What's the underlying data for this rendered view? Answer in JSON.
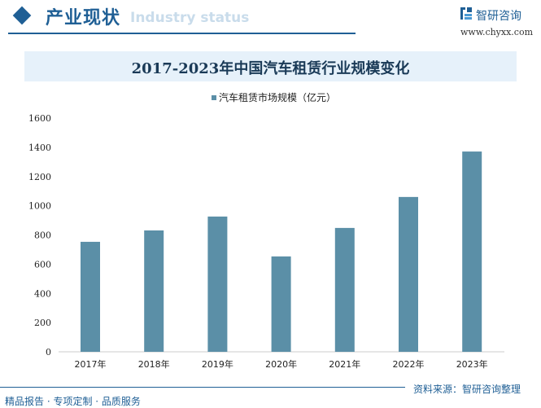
{
  "header": {
    "section_title": "产业现状",
    "section_subtitle": "Industry status",
    "brand_name": "智研咨询",
    "brand_url": "www.chyxx.com"
  },
  "chart_data": {
    "type": "bar",
    "title": "2017-2023年中国汽车租赁行业规模变化",
    "categories": [
      "2017年",
      "2018年",
      "2019年",
      "2020年",
      "2021年",
      "2022年",
      "2023年"
    ],
    "series": [
      {
        "name": "汽车租赁市场规模（亿元）",
        "values": [
          753,
          831,
          926,
          653,
          848,
          1060,
          1371
        ],
        "color": "#5b8fa7"
      }
    ],
    "ylim": [
      0,
      1600
    ],
    "yticks": [
      "0",
      "200",
      "400",
      "600",
      "800",
      "1000",
      "1200",
      "1400",
      "1600"
    ],
    "legend": "top",
    "grid": false
  },
  "footer": {
    "source": "资料来源：智研咨询整理",
    "tagline": "精品报告 · 专项定制 · 品质服务"
  }
}
